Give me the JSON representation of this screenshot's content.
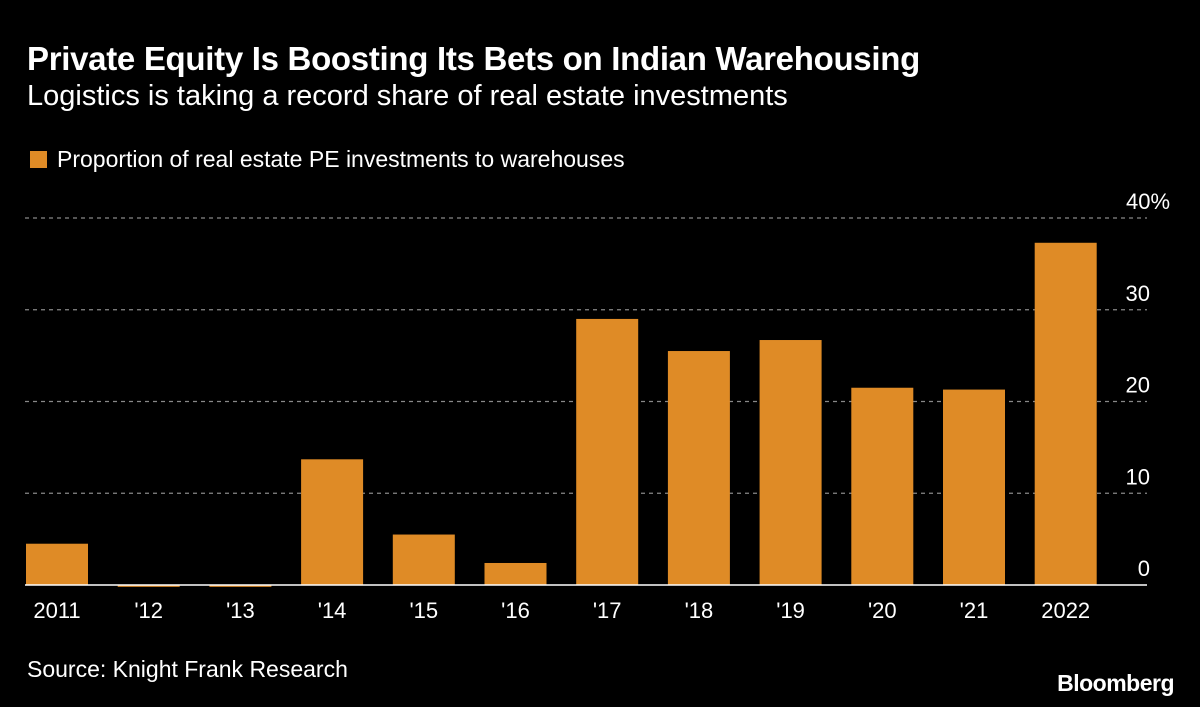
{
  "title": "Private Equity Is Boosting Its Bets on Indian Warehousing",
  "subtitle": "Logistics is taking a record share of real estate investments",
  "source": "Source: Knight Frank Research",
  "logo": "Bloomberg",
  "colors": {
    "bar": "#df8b26",
    "background": "#000000",
    "text": "#ffffff",
    "grid": "#888888"
  },
  "chart_data": {
    "type": "bar",
    "title": "Private Equity Is Boosting Its Bets on Indian Warehousing",
    "subtitle": "Logistics is taking a record share of real estate investments",
    "categories": [
      "2011",
      "'12",
      "'13",
      "'14",
      "'15",
      "'16",
      "'17",
      "'18",
      "'19",
      "'20",
      "'21",
      "2022"
    ],
    "series": [
      {
        "name": "Proportion of real estate PE investments to warehouses",
        "values": [
          4.5,
          0.2,
          0.2,
          13.7,
          5.5,
          2.4,
          29.0,
          25.5,
          26.7,
          21.5,
          21.3,
          37.3
        ]
      }
    ],
    "ylim": [
      0,
      40
    ],
    "yticks": [
      0,
      10,
      20,
      30,
      40
    ],
    "ytick_labels": [
      "0",
      "10",
      "20",
      "30",
      "40%"
    ],
    "yaxis_side": "right",
    "grid": "horizontal dashed",
    "legend": "top-left",
    "xlabel": "",
    "ylabel": ""
  }
}
